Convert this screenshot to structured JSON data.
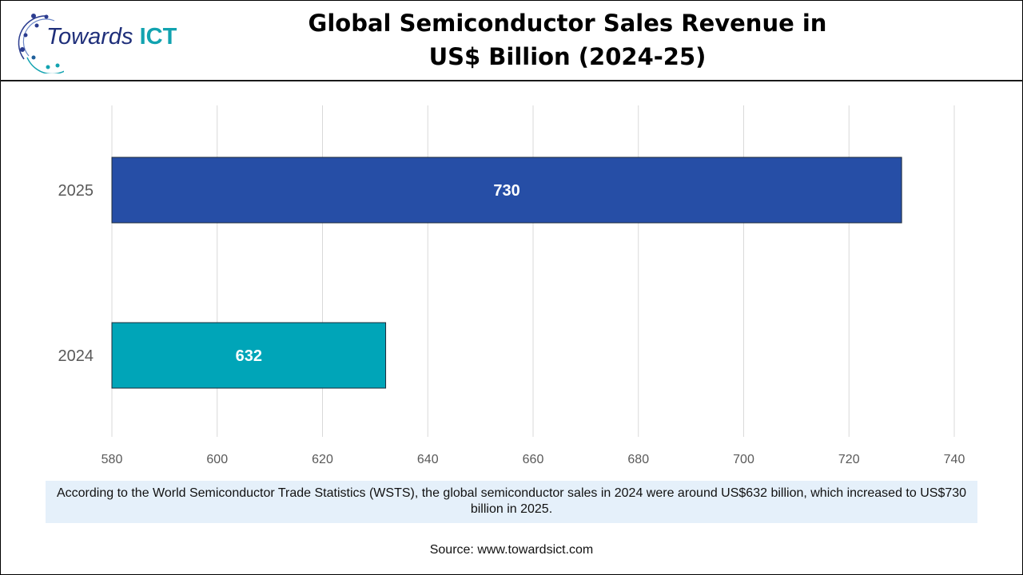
{
  "logo": {
    "text_main": "Towards",
    "text_accent": "ICT"
  },
  "chart_data": {
    "type": "bar",
    "orientation": "horizontal",
    "title": "Global Semiconductor Sales Revenue in US$ Billion (2024-25)",
    "title_lines": [
      "Global Semiconductor Sales Revenue in",
      "US$ Billion (2024-25)"
    ],
    "categories": [
      "2025",
      "2024"
    ],
    "values": [
      730,
      632
    ],
    "data_labels": [
      "730",
      "632"
    ],
    "colors": [
      "#264ea6",
      "#00a5b8"
    ],
    "xlim": [
      580,
      740
    ],
    "xticks": [
      "580",
      "600",
      "620",
      "640",
      "660",
      "680",
      "700",
      "720",
      "740"
    ],
    "grid": true,
    "xlabel": "",
    "ylabel": ""
  },
  "note": "According to the World Semiconductor Trade Statistics (WSTS), the global semiconductor sales in 2024 were around US$632 billion, which increased to US$730 billion in 2025.",
  "source": "Source: www.towardsict.com"
}
